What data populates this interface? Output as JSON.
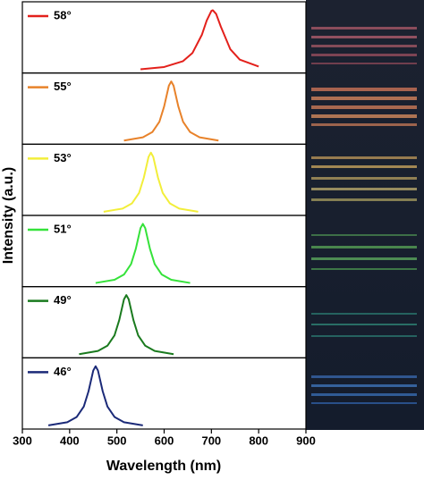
{
  "chart_data": {
    "type": "line",
    "xlabel": "Wavelength (nm)",
    "ylabel": "Intensity (a.u.)",
    "xlim": [
      300,
      900
    ],
    "xticks": [
      300,
      400,
      500,
      600,
      700,
      800,
      900
    ],
    "ylim": [
      0,
      1.08
    ],
    "series": [
      {
        "name": "58°",
        "color": "#e3201b",
        "x": [
          550,
          600,
          640,
          660,
          680,
          690,
          700,
          703,
          710,
          720,
          740,
          760,
          800
        ],
        "values": [
          0.032,
          0.069,
          0.165,
          0.3,
          0.6,
          0.83,
          0.99,
          1,
          0.94,
          0.73,
          0.36,
          0.19,
          0.077
        ]
      },
      {
        "name": "55°",
        "color": "#e8822a",
        "x": [
          515,
          555,
          575,
          590,
          600,
          610,
          615,
          620,
          630,
          640,
          655,
          675,
          715
        ],
        "values": [
          0.031,
          0.083,
          0.169,
          0.34,
          0.59,
          0.93,
          1,
          0.93,
          0.59,
          0.34,
          0.169,
          0.083,
          0.031
        ]
      },
      {
        "name": "53°",
        "color": "#f2ee3a",
        "x": [
          472,
          512,
          532,
          547,
          557,
          567,
          572,
          577,
          587,
          597,
          612,
          632,
          672
        ],
        "values": [
          0.031,
          0.083,
          0.169,
          0.34,
          0.59,
          0.93,
          1,
          0.93,
          0.59,
          0.34,
          0.169,
          0.083,
          0.031
        ]
      },
      {
        "name": "51°",
        "color": "#35e23a",
        "x": [
          455,
          495,
          515,
          530,
          540,
          550,
          555,
          560,
          570,
          580,
          595,
          615,
          655
        ],
        "values": [
          0.031,
          0.083,
          0.169,
          0.34,
          0.59,
          0.93,
          1,
          0.93,
          0.59,
          0.34,
          0.169,
          0.083,
          0.031
        ]
      },
      {
        "name": "49°",
        "color": "#1a7a1e",
        "x": [
          420,
          460,
          480,
          495,
          505,
          515,
          520,
          525,
          535,
          545,
          560,
          580,
          620
        ],
        "values": [
          0.031,
          0.083,
          0.169,
          0.34,
          0.59,
          0.93,
          1,
          0.93,
          0.59,
          0.34,
          0.169,
          0.083,
          0.031
        ]
      },
      {
        "name": "46°",
        "color": "#1b2a78",
        "x": [
          355,
          395,
          415,
          430,
          440,
          450,
          455,
          460,
          470,
          480,
          495,
          515,
          555
        ],
        "values": [
          0.031,
          0.083,
          0.169,
          0.34,
          0.59,
          0.93,
          1,
          0.93,
          0.59,
          0.34,
          0.169,
          0.083,
          0.031
        ]
      }
    ]
  }
}
